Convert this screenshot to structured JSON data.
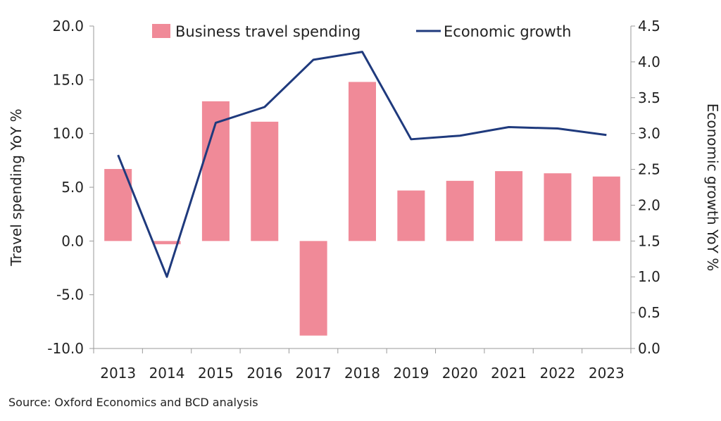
{
  "chart_data": {
    "type": "bar",
    "categories": [
      "2013",
      "2014",
      "2015",
      "2016",
      "2017",
      "2018",
      "2019",
      "2020",
      "2021",
      "2022",
      "2023"
    ],
    "series": [
      {
        "name": "Business travel spending",
        "type": "bar",
        "axis": "left",
        "values": [
          6.7,
          -0.3,
          13.0,
          11.1,
          -8.8,
          14.8,
          4.7,
          5.6,
          6.5,
          6.3,
          6.0
        ]
      },
      {
        "name": "Economic growth",
        "type": "line",
        "axis": "right",
        "values": [
          2.7,
          1.0,
          3.15,
          3.37,
          4.03,
          4.14,
          2.92,
          2.97,
          3.09,
          3.07,
          2.98
        ]
      }
    ],
    "ylabel": "Travel spending YoY %",
    "y2label": "Economic growth YoY %",
    "ylim": [
      -10,
      20
    ],
    "y2lim": [
      0,
      4.5
    ],
    "yticks": [
      "-10.0",
      "-5.0",
      "0.0",
      "5.0",
      "10.0",
      "15.0",
      "20.0"
    ],
    "y2ticks": [
      "0.0",
      "0.5",
      "1.0",
      "1.5",
      "2.0",
      "2.5",
      "3.0",
      "3.5",
      "4.0",
      "4.5"
    ],
    "grid": false,
    "legend_position": "top",
    "colors": {
      "bar": "#f08a98",
      "line": "#1f3a7d",
      "axis": "#9a9a9a"
    }
  },
  "source": "Source: Oxford Economics and BCD analysis"
}
